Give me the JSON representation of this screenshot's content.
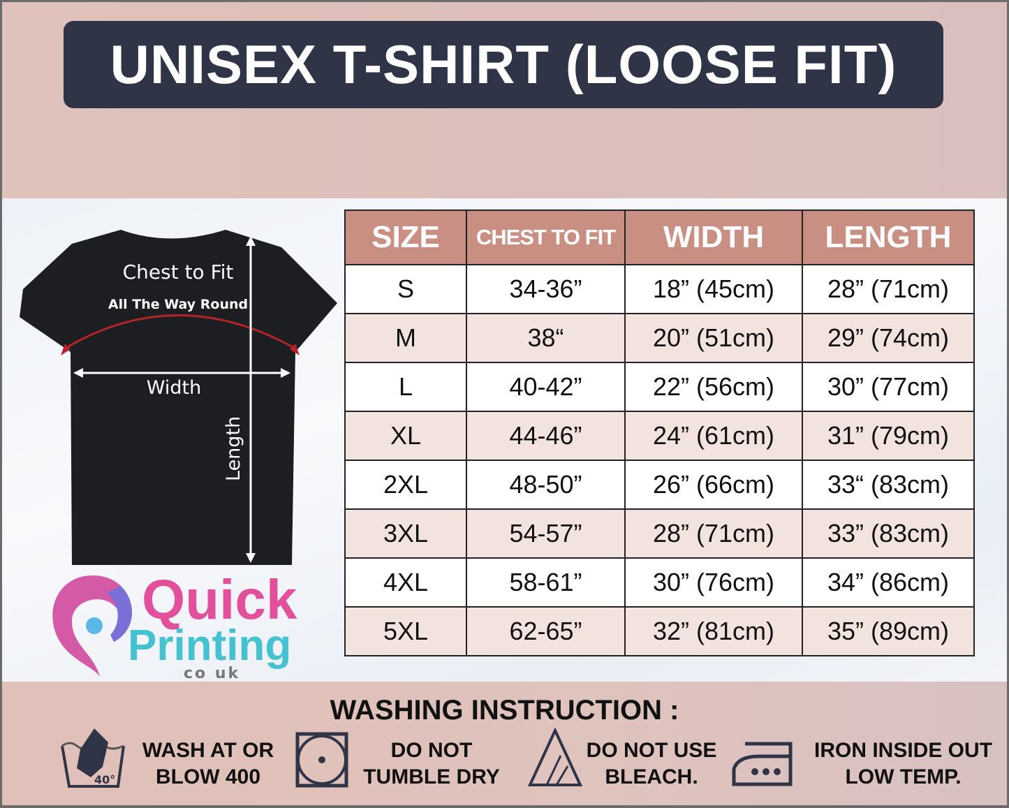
{
  "title": "UNISEX T-SHIRT (LOOSE FIT)",
  "diagram": {
    "chest_label": "Chest to Fit",
    "chest_sub": "All The Way Round",
    "width_label": "Width",
    "length_label": "Length"
  },
  "logo": {
    "line1": "Quick",
    "line2": "Printing",
    "line3": "co uk"
  },
  "table": {
    "headers": [
      "SIZE",
      "CHEST TO FIT",
      "WIDTH",
      "LENGTH"
    ],
    "rows": [
      [
        "S",
        "34-36”",
        "18” (45cm)",
        "28” (71cm)"
      ],
      [
        "M",
        "38“",
        "20” (51cm)",
        "29” (74cm)"
      ],
      [
        "L",
        "40-42”",
        "22” (56cm)",
        "30” (77cm)"
      ],
      [
        "XL",
        "44-46”",
        "24” (61cm)",
        "31” (79cm)"
      ],
      [
        "2XL",
        "48-50”",
        "26” (66cm)",
        "33“ (83cm)"
      ],
      [
        "3XL",
        "54-57”",
        "28” (71cm)",
        "33” (83cm)"
      ],
      [
        "4XL",
        "58-61”",
        "30” (76cm)",
        "34” (86cm)"
      ],
      [
        "5XL",
        "62-65”",
        "32” (81cm)",
        "35” (89cm)"
      ]
    ]
  },
  "washing": {
    "title": "WASHING INSTRUCTION :",
    "items": [
      {
        "icon": "hand-wash-40-icon",
        "line1": "WASH AT OR",
        "line2": "BLOW 400",
        "temp": "40°"
      },
      {
        "icon": "no-tumble-dry-icon",
        "line1": "DO NOT",
        "line2": "TUMBLE DRY"
      },
      {
        "icon": "no-bleach-icon",
        "line1": "DO NOT USE",
        "line2": "BLEACH."
      },
      {
        "icon": "iron-icon",
        "line1": "IRON INSIDE OUT",
        "line2": "LOW TEMP."
      }
    ]
  },
  "colors": {
    "banner": "#2f3447",
    "header": "#c98f82",
    "alt_row": "#f3e3df",
    "accent_pink": "#e2509b",
    "accent_teal": "#45c1cf"
  }
}
